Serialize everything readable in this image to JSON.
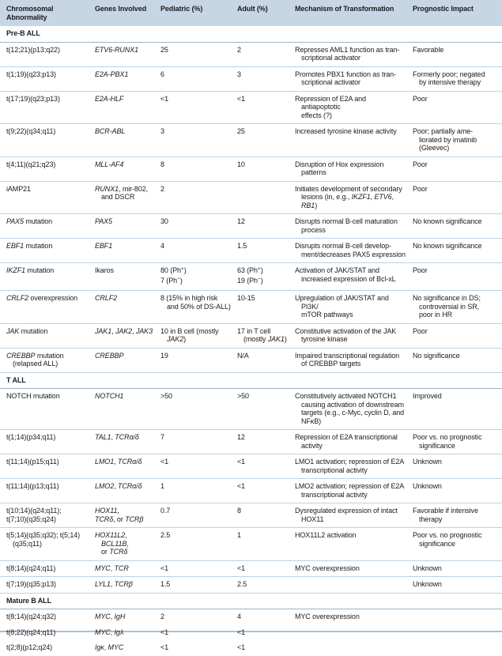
{
  "title": "Chromosomal Abnormalities in ALL",
  "colors": {
    "header_bg": "#c6d6e4",
    "row_divider": "#bdd2e3",
    "section_divider": "#9db3c6",
    "table_bottom_border": "#a6c0d6",
    "text": "#1b1b1b"
  },
  "table": {
    "columns": [
      {
        "key": "abnormality",
        "label": [
          [
            "Chromosomal",
            "\n",
            "Abnormality"
          ]
        ]
      },
      {
        "key": "genes",
        "label": "Genes Involved"
      },
      {
        "key": "pediatric",
        "label": "Pediatric (%)"
      },
      {
        "key": "adult",
        "label": "Adult (%)"
      },
      {
        "key": "mechanism",
        "label": "Mechanism of Transformation"
      },
      {
        "key": "prognostic",
        "label": "Prognostic Impact"
      }
    ],
    "sections": [
      {
        "title": "Pre-B ALL",
        "dividers": true,
        "rows": [
          {
            "abnormality": "t(12;21)(p13;q22)",
            "genes": [
              [
                {
                  "i": "ETV6-RUNX1"
                }
              ]
            ],
            "pediatric": "25",
            "adult": "2",
            "mechanism": [
              [
                "Represses AML1 function as tran-",
                "\n",
                "scriptional activator"
              ]
            ],
            "prognostic": "Favorable"
          },
          {
            "abnormality": "t(1;19)(q23;p13)",
            "genes": [
              [
                {
                  "i": "E2A-PBX1"
                }
              ]
            ],
            "pediatric": "6",
            "adult": "3",
            "mechanism": [
              [
                "Promotes PBX1 function as tran-",
                "\n",
                "scriptional activator"
              ]
            ],
            "prognostic": [
              [
                "Formerly poor; negated",
                "\n",
                "by intensive therapy"
              ]
            ]
          },
          {
            "abnormality": "t(17;19)(q23;p13)",
            "genes": [
              [
                {
                  "i": "E2A-HLF"
                }
              ]
            ],
            "pediatric": "<1",
            "adult": "<1",
            "mechanism": [
              [
                "Repression of E2A and antiapoptotic",
                "\n",
                "effects (?)"
              ]
            ],
            "prognostic": "Poor"
          },
          {
            "abnormality": "t(9;22)(q34;q11)",
            "genes": [
              [
                {
                  "i": "BCR-ABL"
                }
              ]
            ],
            "pediatric": "3",
            "adult": "25",
            "mechanism": "Increased tyrosine kinase activity",
            "prognostic": [
              [
                "Poor; partially ame-",
                "\n",
                "liorated by imatinib",
                "\n",
                "(Gleevec)"
              ]
            ]
          },
          {
            "abnormality": "t(4;11)(q21;q23)",
            "genes": [
              [
                {
                  "i": "MLL-AF4"
                }
              ]
            ],
            "pediatric": "8",
            "adult": "10",
            "mechanism": "Disruption of Hox expression patterns",
            "prognostic": "Poor"
          },
          {
            "abnormality": "iAMP21",
            "genes": [
              [
                {
                  "i": "RUNX1"
                },
                ", mir-802,",
                "\n",
                "and DSCR"
              ]
            ],
            "pediatric": "2",
            "adult": "",
            "mechanism": [
              [
                "Initiates development of secondary",
                "\n",
                "lesions (in, e.g., ",
                {
                  "i": "IKZF1"
                },
                ", ",
                {
                  "i": "ETV6"
                },
                ", ",
                {
                  "i": "RB1"
                },
                ")"
              ]
            ],
            "prognostic": "Poor"
          },
          {
            "abnormality": [
              [
                {
                  "i": "PAX5"
                },
                " mutation"
              ]
            ],
            "genes": [
              [
                {
                  "i": "PAX5"
                }
              ]
            ],
            "pediatric": "30",
            "adult": "12",
            "mechanism": [
              [
                "Disrupts normal B-cell maturation",
                "\n",
                "process"
              ]
            ],
            "prognostic": "No known significance"
          },
          {
            "abnormality": [
              [
                {
                  "i": "EBF1"
                },
                " mutation"
              ]
            ],
            "genes": [
              [
                {
                  "i": "EBF1"
                }
              ]
            ],
            "pediatric": "4",
            "adult": "1.5",
            "mechanism": [
              [
                "Disrupts normal B-cell develop-",
                "\n",
                "ment/decreases PAX5 expression"
              ]
            ],
            "prognostic": "No known significance"
          },
          {
            "abnormality": [
              [
                {
                  "i": "IKZF1"
                },
                " mutation"
              ]
            ],
            "genes": "Ikaros",
            "pediatric": [
              [
                "80 (Ph",
                {
                  "s": "+"
                },
                ")"
              ],
              [
                "7 (Ph",
                {
                  "s": "−"
                },
                ")"
              ]
            ],
            "adult": [
              [
                "63 (Ph",
                {
                  "s": "+"
                },
                ")"
              ],
              [
                "19 (Ph",
                {
                  "s": "−"
                },
                ")"
              ]
            ],
            "mechanism": [
              [
                "Activation of JAK/STAT and",
                "\n",
                "increased expression of Bcl-xL"
              ]
            ],
            "prognostic": "Poor"
          },
          {
            "abnormality": [
              [
                {
                  "i": "CRLF2"
                },
                " overexpression"
              ]
            ],
            "genes": [
              [
                {
                  "i": "CRLF2"
                }
              ]
            ],
            "pediatric": [
              [
                "8 (15% in high risk",
                "\n",
                "and 50% of DS-ALL)"
              ]
            ],
            "adult": "10-15",
            "mechanism": [
              [
                "Upregulation of JAK/STAT and PI3K/",
                "\n",
                "mTOR pathways"
              ]
            ],
            "prognostic": [
              [
                "No significance in DS;",
                "\n",
                "controversial in SR,",
                "\n",
                "poor in HR"
              ]
            ]
          },
          {
            "abnormality": [
              [
                {
                  "i": "JAK"
                },
                " mutation"
              ]
            ],
            "genes": [
              [
                {
                  "i": "JAK1"
                },
                ", ",
                {
                  "i": "JAK2"
                },
                ", ",
                {
                  "i": "JAK3"
                }
              ]
            ],
            "pediatric": [
              [
                "10 in B cell (mostly",
                "\n",
                {
                  "i": "JAK2"
                },
                ")"
              ]
            ],
            "adult": [
              [
                "17 in T cell",
                "\n",
                "(mostly ",
                {
                  "i": "JAK1"
                },
                ")"
              ]
            ],
            "mechanism": [
              [
                "Constitutive activation of the JAK",
                "\n",
                "tyrosine kinase"
              ]
            ],
            "prognostic": "Poor"
          },
          {
            "abnormality": [
              [
                {
                  "i": "CREBBP"
                },
                " mutation",
                "\n",
                "(relapsed ALL)"
              ]
            ],
            "genes": [
              [
                {
                  "i": "CREBBP"
                }
              ]
            ],
            "pediatric": "19",
            "adult": "N/A",
            "mechanism": [
              [
                "Impaired transcriptional regulation",
                "\n",
                "of CREBBP targets"
              ]
            ],
            "prognostic": "No significance"
          }
        ]
      },
      {
        "title": "T ALL",
        "dividers": true,
        "rows": [
          {
            "abnormality": "NOTCH mutation",
            "genes": [
              [
                {
                  "i": "NOTCH1"
                }
              ]
            ],
            "pediatric": ">50",
            "adult": ">50",
            "mechanism": [
              [
                "Constitutively activated NOTCH1",
                "\n",
                "causing activation of downstream",
                "\n",
                "targets (e.g., c-Myc, cyclin D, and",
                "\n",
                "NFκB)"
              ]
            ],
            "prognostic": "Improved"
          },
          {
            "abnormality": "t(1;14)(p34;q11)",
            "genes": [
              [
                {
                  "i": "TAL1"
                },
                ", ",
                {
                  "i": "TCRα/δ"
                }
              ]
            ],
            "pediatric": "7",
            "adult": "12",
            "mechanism": [
              [
                "Repression of E2A transcriptional",
                "\n",
                "activity"
              ]
            ],
            "prognostic": [
              [
                "Poor vs. no prognostic",
                "\n",
                "significance"
              ]
            ]
          },
          {
            "abnormality": "t(11;14)(p15;q11)",
            "genes": [
              [
                {
                  "i": "LMO1"
                },
                ", ",
                {
                  "i": "TCRα/δ"
                }
              ]
            ],
            "pediatric": "<1",
            "adult": "<1",
            "mechanism": [
              [
                "LMO1 activation; repression of E2A",
                "\n",
                "transcriptional activity"
              ]
            ],
            "prognostic": "Unknown"
          },
          {
            "abnormality": "t(11;14)(p13;q11)",
            "genes": [
              [
                {
                  "i": "LMO2"
                },
                ", ",
                {
                  "i": "TCRα/δ"
                }
              ]
            ],
            "pediatric": "1",
            "adult": "<1",
            "mechanism": [
              [
                "LMO2 activation; repression of E2A",
                "\n",
                "transcriptional activity"
              ]
            ],
            "prognostic": "Unknown"
          },
          {
            "abnormality": [
              [
                "t(10;14)(q24;q11);"
              ],
              [
                "t(7;10)(q35;q24)"
              ]
            ],
            "genes": [
              [
                {
                  "i": "HOX11"
                },
                ","
              ],
              [
                {
                  "i": "TCRδ"
                },
                ", or ",
                {
                  "i": "TCRβ"
                }
              ]
            ],
            "pediatric": "0.7",
            "adult": "8",
            "mechanism": [
              [
                "Dysregulated expression of intact",
                "\n",
                "HOX11"
              ]
            ],
            "prognostic": [
              [
                "Favorable if intensive",
                "\n",
                "therapy"
              ]
            ]
          },
          {
            "abnormality": [
              [
                "t(5;14)(q35;q32); t(5;14)",
                "\n",
                "(q35;q11)"
              ]
            ],
            "genes": [
              [
                {
                  "i": "HOX11L2"
                },
                ", ",
                {
                  "i": "BCL11B"
                },
                ",",
                "\n",
                "or ",
                {
                  "i": "TCRδ"
                }
              ]
            ],
            "pediatric": "2.5",
            "adult": "1",
            "mechanism": "HOX11L2 activation",
            "prognostic": [
              [
                "Poor vs. no prognostic",
                "\n",
                "significance"
              ]
            ]
          },
          {
            "abnormality": "t(8;14)(q24;q11)",
            "genes": [
              [
                {
                  "i": "MYC"
                },
                ", ",
                {
                  "i": "TCR"
                }
              ]
            ],
            "pediatric": "<1",
            "adult": "<1",
            "mechanism": "MYC overexpression",
            "prognostic": "Unknown"
          },
          {
            "abnormality": "t(7;19)(q35;p13)",
            "genes": [
              [
                {
                  "i": "LYL1"
                },
                ", ",
                {
                  "i": "TCRβ"
                }
              ]
            ],
            "pediatric": "1.5",
            "adult": "2.5",
            "mechanism": "",
            "prognostic": "Unknown"
          }
        ]
      },
      {
        "title": "Mature B ALL",
        "dividers": false,
        "rows": [
          {
            "abnormality": "t(8;14)(q24;q32)",
            "genes": [
              [
                {
                  "i": "MYC"
                },
                ", ",
                {
                  "i": "IgH"
                }
              ]
            ],
            "pediatric": "2",
            "adult": "4",
            "mechanism": "MYC overexpression",
            "prognostic": ""
          },
          {
            "abnormality": "t(8;22)(q24;q11)",
            "genes": [
              [
                {
                  "i": "MYC"
                },
                ", ",
                {
                  "i": "Igλ"
                }
              ]
            ],
            "pediatric": "<1",
            "adult": "<1",
            "mechanism": "",
            "prognostic": ""
          },
          {
            "abnormality": "t(2;8)(p12;q24)",
            "genes": [
              [
                {
                  "i": "Igκ"
                },
                ", ",
                {
                  "i": "MYC"
                }
              ]
            ],
            "pediatric": "<1",
            "adult": "<1",
            "mechanism": "",
            "prognostic": ""
          }
        ]
      }
    ]
  }
}
